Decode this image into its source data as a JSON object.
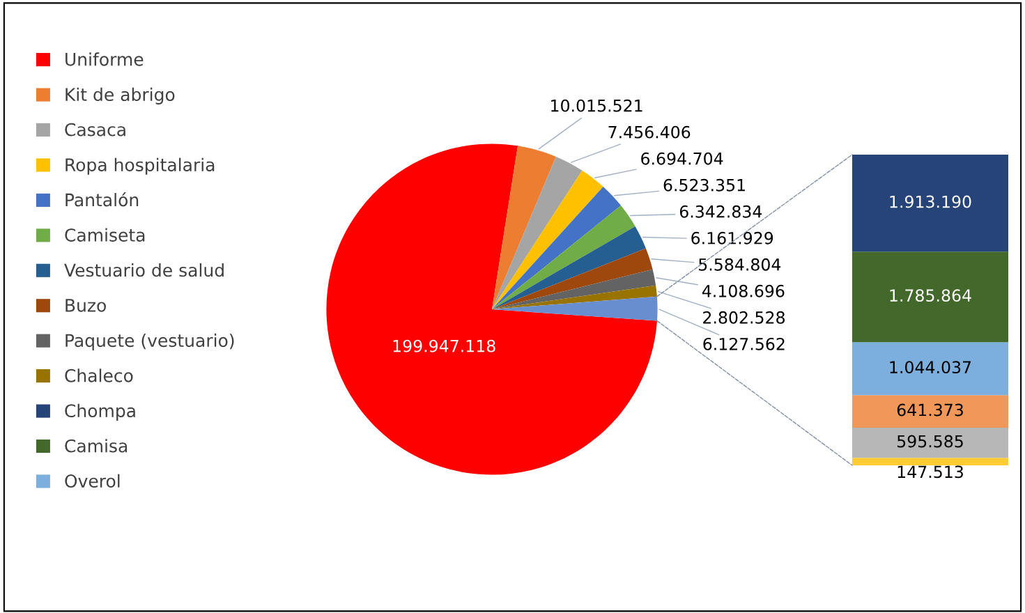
{
  "chart_data": [
    {
      "type": "pie",
      "categories": [
        "Uniforme",
        "Kit de abrigo",
        "Casaca",
        "Ropa hospitalaria",
        "Pantalón",
        "Camiseta",
        "Vestuario de salud",
        "Buzo",
        "Paquete (vestuario)",
        "Chaleco",
        null
      ],
      "values": [
        199947118,
        10015521,
        7456406,
        6694704,
        6523351,
        6342834,
        6161929,
        5584804,
        4108696,
        2802528,
        6127562
      ],
      "value_labels": [
        "199.947.118",
        "10.015.521",
        "7.456.406",
        "6.694.704",
        "6.523.351",
        "6.342.834",
        "6.161.929",
        "5.584.804",
        "4.108.696",
        "2.802.528",
        "6.127.562"
      ],
      "colors": [
        "#ff0000",
        "#ed7d31",
        "#a5a5a5",
        "#ffc000",
        "#4472c4",
        "#70ad47",
        "#255e91",
        "#9e480e",
        "#636363",
        "#997300",
        "#698ed0"
      ],
      "legend": "left"
    },
    {
      "type": "bar",
      "stacked": true,
      "categories": [
        null
      ],
      "legend": "left",
      "series": [
        {
          "color": "#ffcd33",
          "values": [
            147513
          ],
          "value_labels": [
            "147.513"
          ]
        },
        {
          "color": "#b7b7b7",
          "values": [
            595585
          ],
          "value_labels": [
            "595.585"
          ]
        },
        {
          "color": "#f1975a",
          "values": [
            641373
          ],
          "value_labels": [
            "641.373"
          ]
        },
        {
          "name": "Overol",
          "color": "#7cafdd",
          "values": [
            1044037
          ],
          "value_labels": [
            "1.044.037"
          ]
        },
        {
          "name": "Camisa",
          "color": "#43682b",
          "values": [
            1785864
          ],
          "value_labels": [
            "1.785.864"
          ]
        },
        {
          "name": "Chompa",
          "color": "#264478",
          "values": [
            1913190
          ],
          "value_labels": [
            "1.913.190"
          ]
        }
      ]
    }
  ]
}
